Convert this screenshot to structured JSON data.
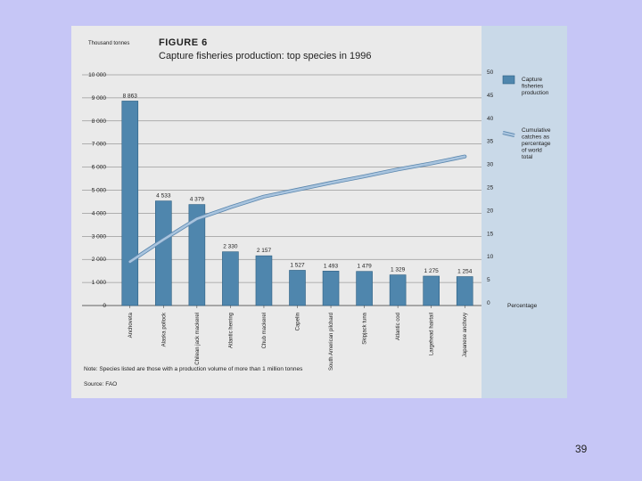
{
  "slide": {
    "page_number": "39"
  },
  "colors": {
    "bar": "#4f86ad",
    "bar_stroke": "#2d5f82",
    "line": "#a9c4de",
    "line_edge": "#5a86ad",
    "axis": "#333333"
  },
  "chart_data": {
    "type": "bar",
    "figure_label": "FIGURE 6",
    "title": "Capture fisheries production: top species in 1996",
    "ylabel_left": "Thousand tonnes",
    "ylabel_right": "Percentage",
    "ylim_left": [
      0,
      10000
    ],
    "ylim_right": [
      0,
      50
    ],
    "yticks_left": [
      "10 000",
      "9 000",
      "8 000",
      "7 000",
      "6 000",
      "5 000",
      "4 000",
      "3 000",
      "2 000",
      "1 000",
      "0"
    ],
    "yticks_right": [
      "50",
      "45",
      "40",
      "35",
      "30",
      "25",
      "20",
      "15",
      "10",
      "5",
      "0"
    ],
    "categories": [
      "Anchoveta",
      "Alaska pollock",
      "Chilean jack mackerel",
      "Atlantic herring",
      "Chub mackerel",
      "Capelin",
      "South American pilchard",
      "Skipjack tuna",
      "Atlantic cod",
      "Largehead hairtail",
      "Japanese anchovy"
    ],
    "series": [
      {
        "name": "Capture fisheries production",
        "kind": "bar",
        "axis": "left",
        "values": [
          8863,
          4533,
          4379,
          2330,
          2157,
          1527,
          1493,
          1479,
          1329,
          1275,
          1254
        ],
        "labels": [
          "8 863",
          "4 533",
          "4 379",
          "2 330",
          "2 157",
          "1 527",
          "1 493",
          "1 479",
          "1 329",
          "1 275",
          "1 254"
        ]
      },
      {
        "name": "Cumulative catches as percentage of world total",
        "kind": "line",
        "axis": "right",
        "values": [
          9.5,
          14.3,
          18.8,
          21.3,
          23.6,
          25.1,
          26.6,
          28.0,
          29.5,
          30.8,
          32.3
        ]
      }
    ],
    "legend": [
      {
        "label": "Capture fisheries production"
      },
      {
        "label": "Cumulative catches as percentage of world total"
      }
    ],
    "note": "Note: Species listed are those with a production volume of more than 1 million tonnes",
    "source": "Source: FAO"
  }
}
